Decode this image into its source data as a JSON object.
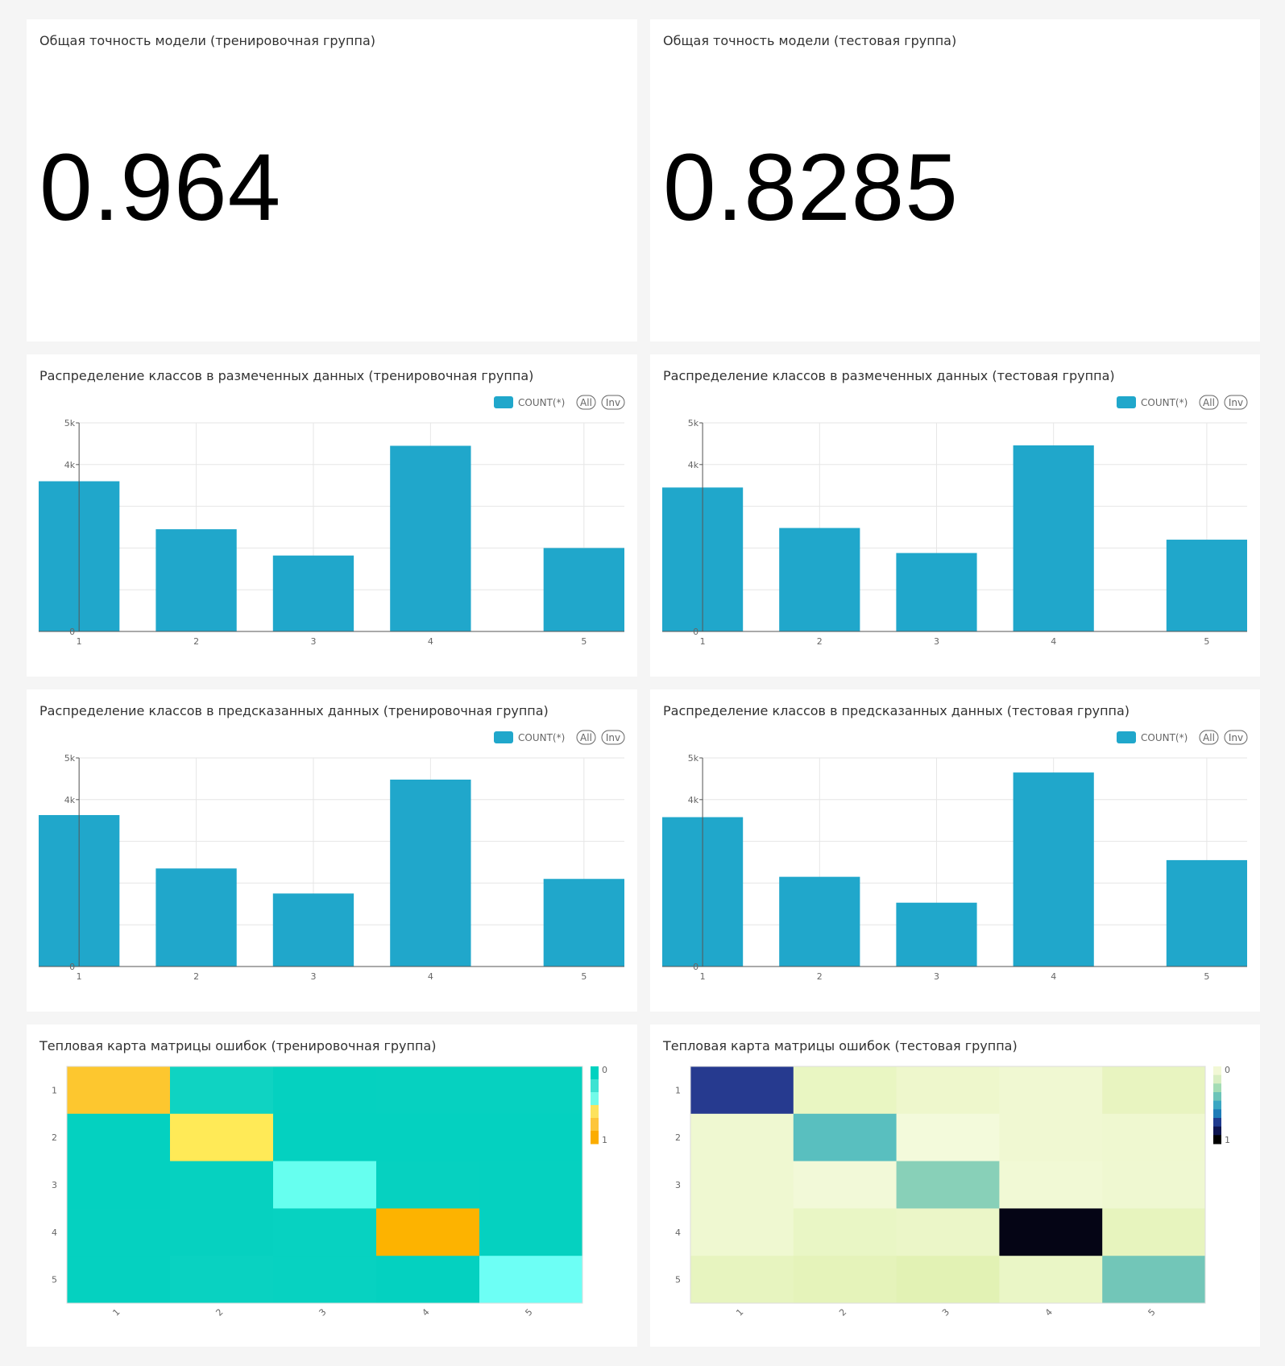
{
  "panels": {
    "train_accuracy": {
      "title": "Общая точность модели (тренировочная группа)",
      "value": "0.964"
    },
    "test_accuracy": {
      "title": "Общая точность модели (тестовая группа)",
      "value": "0.8285"
    },
    "legend": {
      "series_label": "COUNT(*)",
      "all_label": "All",
      "inv_label": "Inv",
      "color": "#20a7cb"
    }
  },
  "chart_data": [
    {
      "id": "labeled-train",
      "type": "bar",
      "title": "Распределение классов в размеченных данных (тренировочная группа)",
      "categories": [
        "1",
        "2",
        "3",
        "4",
        "5"
      ],
      "series": [
        {
          "name": "COUNT(*)",
          "values": [
            3600,
            2450,
            1820,
            4450,
            2000
          ]
        }
      ],
      "yticks": [
        "5k",
        "4k",
        "0"
      ],
      "ylim": [
        0,
        5000
      ],
      "color": "#20a7cb"
    },
    {
      "id": "labeled-test",
      "type": "bar",
      "title": "Распределение классов в размеченных данных (тестовая группа)",
      "categories": [
        "1",
        "2",
        "3",
        "4",
        "5"
      ],
      "series": [
        {
          "name": "COUNT(*)",
          "values": [
            3450,
            2480,
            1880,
            4460,
            2200
          ]
        }
      ],
      "yticks": [
        "5k",
        "4k",
        "0"
      ],
      "ylim": [
        0,
        5000
      ],
      "color": "#20a7cb"
    },
    {
      "id": "predicted-train",
      "type": "bar",
      "title": "Распределение классов в предсказанных данных (тренировочная группа)",
      "categories": [
        "1",
        "2",
        "3",
        "4",
        "5"
      ],
      "series": [
        {
          "name": "COUNT(*)",
          "values": [
            3630,
            2350,
            1750,
            4480,
            2100
          ]
        }
      ],
      "yticks": [
        "5k",
        "4k",
        "0"
      ],
      "ylim": [
        0,
        5000
      ],
      "color": "#20a7cb"
    },
    {
      "id": "predicted-test",
      "type": "bar",
      "title": "Распределение классов в предсказанных данных (тестовая группа)",
      "categories": [
        "1",
        "2",
        "3",
        "4",
        "5"
      ],
      "series": [
        {
          "name": "COUNT(*)",
          "values": [
            3580,
            2150,
            1530,
            4650,
            2550
          ]
        }
      ],
      "yticks": [
        "5k",
        "4k",
        "0"
      ],
      "ylim": [
        0,
        5000
      ],
      "color": "#20a7cb"
    },
    {
      "id": "confusion-train",
      "type": "heatmap",
      "title": "Тепловая карта матрицы ошибок (тренировочная группа)",
      "rows": [
        "1",
        "2",
        "3",
        "4",
        "5"
      ],
      "cols": [
        "1",
        "2",
        "3",
        "4",
        "5"
      ],
      "cell_colors": [
        [
          "#fdc72f",
          "#0fd3c2",
          "#05d1c0",
          "#06d1c0",
          "#06d1c0"
        ],
        [
          "#04d1c0",
          "#ffea57",
          "#04d1c0",
          "#04d1c0",
          "#04d1c0"
        ],
        [
          "#04d1c0",
          "#06d1c0",
          "#66ffef",
          "#06d1c0",
          "#05d1c0"
        ],
        [
          "#05d1c0",
          "#06d1c0",
          "#07d2c1",
          "#fdb300",
          "#05d1c0"
        ],
        [
          "#05d1c0",
          "#09d2c1",
          "#07d2c1",
          "#04d1c0",
          "#6dfff5"
        ]
      ],
      "legend_colors": [
        "#00d2c0",
        "#3ee2d2",
        "#72fbe9",
        "#fde25c",
        "#fdc53a",
        "#fbad00"
      ],
      "legend_labels": [
        "0",
        "1"
      ]
    },
    {
      "id": "confusion-test",
      "type": "heatmap",
      "title": "Тепловая карта матрицы ошибок (тестовая группа)",
      "rows": [
        "1",
        "2",
        "3",
        "4",
        "5"
      ],
      "cols": [
        "1",
        "2",
        "3",
        "4",
        "5"
      ],
      "cell_colors": [
        [
          "#263a8f",
          "#e9f6c2",
          "#eef7cc",
          "#f0f8d2",
          "#e8f4c0"
        ],
        [
          "#eff8d1",
          "#59bfbf",
          "#f3fadb",
          "#f0f8d2",
          "#eff8d0"
        ],
        [
          "#eff8d1",
          "#f2f9d8",
          "#88d0b8",
          "#f1f9d5",
          "#eff8d1"
        ],
        [
          "#eff8d1",
          "#e9f6c5",
          "#ebf6c8",
          "#050515",
          "#e7f4be"
        ],
        [
          "#e7f4bf",
          "#e5f3ba",
          "#e2f2b4",
          "#eaf6c6",
          "#72c6b8"
        ]
      ],
      "legend_colors": [
        "#f2f8d6",
        "#d8eec2",
        "#a3dcb5",
        "#6cc4b9",
        "#3aa6c2",
        "#1e7cb8",
        "#203b8f",
        "#0e1550",
        "#000000"
      ],
      "legend_labels": [
        "0",
        "1"
      ]
    }
  ]
}
